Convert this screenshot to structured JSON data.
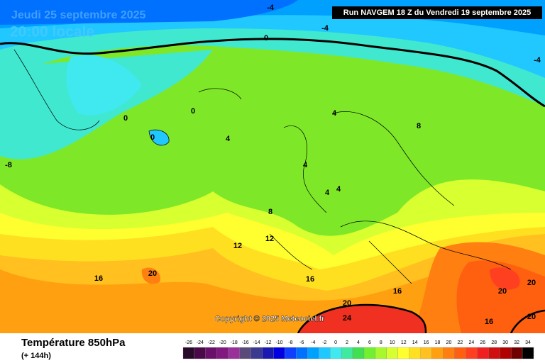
{
  "map": {
    "date": "Jeudi 25 septembre 2025",
    "time": "20:00 locale",
    "run": "Run NAVGEM 18 Z du Vendredi 19 septembre 2025",
    "copyright": "Copyright © 2025 Meteociel.fr",
    "contour_labels": [
      "-4",
      "-4",
      "0",
      "0",
      "0",
      "0",
      "4",
      "4",
      "4",
      "4",
      "4",
      "8",
      "8",
      "-8",
      "12",
      "12",
      "16",
      "16",
      "16",
      "16",
      "20",
      "20",
      "20",
      "20",
      "20",
      "24",
      "-4"
    ]
  },
  "legend": {
    "title": "Température 850hPa",
    "subtitle": "(+ 144h)",
    "scale": [
      {
        "label": "-26",
        "color": "#2a0a2a"
      },
      {
        "label": "-24",
        "color": "#4a0a4a"
      },
      {
        "label": "-22",
        "color": "#6a106a"
      },
      {
        "label": "-20",
        "color": "#801880"
      },
      {
        "label": "-18",
        "color": "#9a309a"
      },
      {
        "label": "-16",
        "color": "#5a4a7a"
      },
      {
        "label": "-14",
        "color": "#3a3a90"
      },
      {
        "label": "-12",
        "color": "#1a1ab0"
      },
      {
        "label": "-10",
        "color": "#0000e0"
      },
      {
        "label": "-8",
        "color": "#1040ff"
      },
      {
        "label": "-6",
        "color": "#0070ff"
      },
      {
        "label": "-4",
        "color": "#00a0ff"
      },
      {
        "label": "-2",
        "color": "#20c8ff"
      },
      {
        "label": "0",
        "color": "#40e8f0"
      },
      {
        "label": "2",
        "color": "#40e8a0"
      },
      {
        "label": "4",
        "color": "#40e050"
      },
      {
        "label": "6",
        "color": "#70f030"
      },
      {
        "label": "8",
        "color": "#a8f830"
      },
      {
        "label": "10",
        "color": "#d8ff30"
      },
      {
        "label": "12",
        "color": "#ffff30"
      },
      {
        "label": "14",
        "color": "#ffe020"
      },
      {
        "label": "16",
        "color": "#ffc020"
      },
      {
        "label": "18",
        "color": "#ffa010"
      },
      {
        "label": "20",
        "color": "#ff8010"
      },
      {
        "label": "22",
        "color": "#ff6010"
      },
      {
        "label": "24",
        "color": "#ff4020"
      },
      {
        "label": "26",
        "color": "#f02020"
      },
      {
        "label": "28",
        "color": "#d01010"
      },
      {
        "label": "30",
        "color": "#b00000"
      },
      {
        "label": "32",
        "color": "#700000"
      },
      {
        "label": "34",
        "color": "#000000"
      }
    ]
  }
}
